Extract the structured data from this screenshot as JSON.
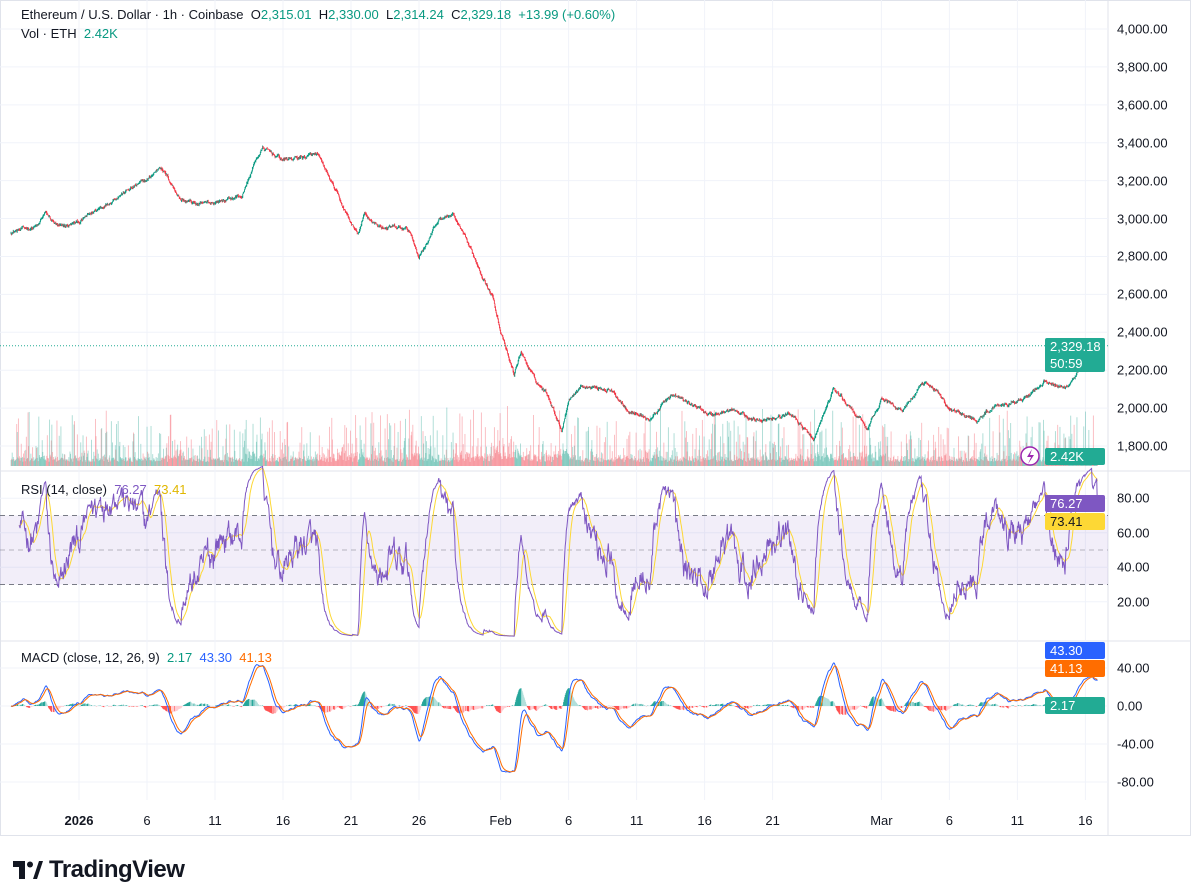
{
  "header": {
    "symbol": "Ethereum / U.S. Dollar · 1h · Coinbase",
    "o_label": "O",
    "o": "2,315.01",
    "h_label": "H",
    "h": "2,330.00",
    "l_label": "L",
    "l": "2,314.24",
    "c_label": "C",
    "c": "2,329.18",
    "change": "+13.99 (+0.60%)",
    "vol_label": "Vol · ETH",
    "vol": "2.42K"
  },
  "rsi_legend": {
    "label": "RSI (14, close)",
    "rsi": "76.27",
    "ma": "73.41"
  },
  "macd_legend": {
    "label": "MACD (close, 12, 26, 9)",
    "hist": "2.17",
    "macd": "43.30",
    "signal": "41.13"
  },
  "badges": {
    "price": "2,329.18",
    "countdown": "50:59",
    "volume": "2.42K",
    "rsi": "76.27",
    "rsi_ma": "73.41",
    "macd": "43.30",
    "signal": "41.13",
    "hist": "2.17"
  },
  "logo": "TradingView",
  "colors": {
    "up": "#089981",
    "down": "#f23645",
    "rsi": "#7e57c2",
    "rsi_ma": "#fdd835",
    "macd": "#2962ff",
    "signal": "#ff6d00",
    "price_badge": "#22ab94"
  },
  "chart_data": [
    {
      "type": "candlestick",
      "title": "Ethereum / U.S. Dollar · 1h · Coinbase",
      "ylim": [
        1800,
        4000
      ],
      "y_ticks": [
        "4,000.00",
        "3,800.00",
        "3,600.00",
        "3,400.00",
        "3,200.00",
        "3,000.00",
        "2,800.00",
        "2,600.00",
        "2,400.00",
        "2,200.00",
        "2,000.00",
        "1,800.00"
      ],
      "x_ticks": [
        {
          "date": "2026-01-01",
          "label": "2026",
          "bold": true
        },
        {
          "date": "2026-01-06",
          "label": "6"
        },
        {
          "date": "2026-01-11",
          "label": "11"
        },
        {
          "date": "2026-01-16",
          "label": "16"
        },
        {
          "date": "2026-01-21",
          "label": "21"
        },
        {
          "date": "2026-01-26",
          "label": "26"
        },
        {
          "date": "2026-02-01",
          "label": "Feb"
        },
        {
          "date": "2026-02-06",
          "label": "6"
        },
        {
          "date": "2026-02-11",
          "label": "11"
        },
        {
          "date": "2026-02-16",
          "label": "16"
        },
        {
          "date": "2026-02-21",
          "label": "21"
        },
        {
          "date": "2026-03-01",
          "label": "Mar"
        },
        {
          "date": "2026-03-06",
          "label": "6"
        },
        {
          "date": "2026-03-11",
          "label": "11"
        },
        {
          "date": "2026-03-16",
          "label": "16"
        }
      ],
      "grid": true,
      "approx_close_path": [
        [
          "2025-12-27 00:00",
          2930
        ],
        [
          "2025-12-29 00:00",
          2960
        ],
        [
          "2025-12-29 12:00",
          3030
        ],
        [
          "2025-12-30 12:00",
          2950
        ],
        [
          "2026-01-01 00:00",
          2980
        ],
        [
          "2026-01-04 00:00",
          3130
        ],
        [
          "2026-01-06 00:00",
          3200
        ],
        [
          "2026-01-07 00:00",
          3280
        ],
        [
          "2026-01-08 12:00",
          3100
        ],
        [
          "2026-01-10 00:00",
          3070
        ],
        [
          "2026-01-13 00:00",
          3120
        ],
        [
          "2026-01-14 00:00",
          3310
        ],
        [
          "2026-01-14 12:00",
          3370
        ],
        [
          "2026-01-16 00:00",
          3310
        ],
        [
          "2026-01-18 12:00",
          3335
        ],
        [
          "2026-01-19 12:00",
          3200
        ],
        [
          "2026-01-20 12:00",
          3045
        ],
        [
          "2026-01-21 12:00",
          2910
        ],
        [
          "2026-01-22 00:00",
          3020
        ],
        [
          "2026-01-23 00:00",
          2960
        ],
        [
          "2026-01-25 06:00",
          2940
        ],
        [
          "2026-01-26 00:00",
          2800
        ],
        [
          "2026-01-27 12:00",
          3000
        ],
        [
          "2026-01-28 12:00",
          3020
        ],
        [
          "2026-01-29 06:00",
          2910
        ],
        [
          "2026-01-30 12:00",
          2730
        ],
        [
          "2026-01-31 12:00",
          2570
        ],
        [
          "2026-02-01 00:00",
          2410
        ],
        [
          "2026-02-01 12:00",
          2280
        ],
        [
          "2026-02-02 00:00",
          2175
        ],
        [
          "2026-02-02 12:00",
          2300
        ],
        [
          "2026-02-03 12:00",
          2150
        ],
        [
          "2026-02-04 12:00",
          2070
        ],
        [
          "2026-02-05 12:00",
          1885
        ],
        [
          "2026-02-06 00:00",
          2050
        ],
        [
          "2026-02-07 00:00",
          2120
        ],
        [
          "2026-02-09 00:00",
          2100
        ],
        [
          "2026-02-10 12:00",
          1990
        ],
        [
          "2026-02-12 00:00",
          1940
        ],
        [
          "2026-02-13 12:00",
          2070
        ],
        [
          "2026-02-15 00:00",
          2020
        ],
        [
          "2026-02-16 12:00",
          1965
        ],
        [
          "2026-02-18 00:00",
          1990
        ],
        [
          "2026-02-19 12:00",
          1940
        ],
        [
          "2026-02-22 12:00",
          1965
        ],
        [
          "2026-02-24 00:00",
          1830
        ],
        [
          "2026-02-25 12:00",
          2100
        ],
        [
          "2026-02-26 12:00",
          2020
        ],
        [
          "2026-02-28 00:00",
          1885
        ],
        [
          "2026-03-01 00:00",
          2050
        ],
        [
          "2026-03-02 12:00",
          1990
        ],
        [
          "2026-03-04 00:00",
          2120
        ],
        [
          "2026-03-05 00:00",
          2100
        ],
        [
          "2026-03-06 00:00",
          1990
        ],
        [
          "2026-03-08 00:00",
          1940
        ],
        [
          "2026-03-09 12:00",
          2020
        ],
        [
          "2026-03-11 12:00",
          2050
        ],
        [
          "2026-03-13 00:00",
          2150
        ],
        [
          "2026-03-14 12:00",
          2100
        ],
        [
          "2026-03-15 12:00",
          2200
        ],
        [
          "2026-03-16 21:00",
          2329.18
        ]
      ],
      "last_close": 2329.18
    },
    {
      "type": "line",
      "title": "RSI (14, close)",
      "ylim": [
        10,
        90
      ],
      "y_ticks": [
        "80.00",
        "60.00",
        "40.00",
        "20.00"
      ],
      "bands": [
        30,
        50,
        70
      ],
      "last": [
        76.27,
        73.41
      ]
    },
    {
      "type": "line",
      "title": "MACD (close, 12, 26, 9)",
      "ylim": [
        -100,
        80
      ],
      "y_ticks": [
        "40.00",
        "0.00",
        "-40.00",
        "-80.00"
      ],
      "last": {
        "hist": 2.17,
        "macd": 43.3,
        "signal": 41.13
      }
    }
  ]
}
